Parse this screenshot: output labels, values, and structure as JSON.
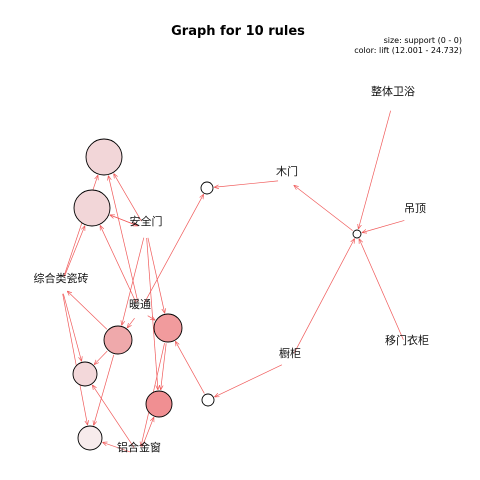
{
  "graph": {
    "title": "Graph for 10 rules",
    "legend": {
      "size": "size: support (0 - 0)",
      "color": "color: lift (12.001 - 24.732)"
    },
    "items": {
      "zhengti": "整体卫浴",
      "mumen": "木门",
      "diaoding": "吊顶",
      "anquanmen": "安全门",
      "zonghe": "综合类瓷砖",
      "nuantong": "暖通",
      "yimen": "移门衣柜",
      "chugui": "橱柜",
      "lvhejin": "铝合金窗"
    },
    "rules": [
      {
        "id": "r1",
        "lift_color": "#f2d6d8"
      },
      {
        "id": "r2",
        "lift_color": "#f2d6d8"
      },
      {
        "id": "r3",
        "lift_color": "#ffffff"
      },
      {
        "id": "r4",
        "lift_color": "#ffffff"
      },
      {
        "id": "r5",
        "lift_color": "#efa9ab"
      },
      {
        "id": "r6",
        "lift_color": "#f19b9d"
      },
      {
        "id": "r7",
        "lift_color": "#f3d8da"
      },
      {
        "id": "r8",
        "lift_color": "#f08f92"
      },
      {
        "id": "r9",
        "lift_color": "#ffffff"
      },
      {
        "id": "r10",
        "lift_color": "#f7ebec"
      }
    ],
    "edges": [
      [
        "zhengti",
        "r4"
      ],
      [
        "diaoding",
        "r4"
      ],
      [
        "yimen",
        "r4"
      ],
      [
        "r4",
        "mumen"
      ],
      [
        "mumen",
        "r3"
      ],
      [
        "chugui",
        "r4"
      ],
      [
        "anquanmen",
        "r1"
      ],
      [
        "anquanmen",
        "r2"
      ],
      [
        "anquanmen",
        "r5"
      ],
      [
        "anquanmen",
        "r6"
      ],
      [
        "anquanmen",
        "r8"
      ],
      [
        "zonghe",
        "r1"
      ],
      [
        "zonghe",
        "r2"
      ],
      [
        "zonghe",
        "r7"
      ],
      [
        "zonghe",
        "r10"
      ],
      [
        "nuantong",
        "r1"
      ],
      [
        "nuantong",
        "r2"
      ],
      [
        "nuantong",
        "r3"
      ],
      [
        "nuantong",
        "r5"
      ],
      [
        "nuantong",
        "r6"
      ],
      [
        "r5",
        "zonghe"
      ],
      [
        "r6",
        "lvhejin"
      ],
      [
        "r5",
        "r7"
      ],
      [
        "r6",
        "r8"
      ],
      [
        "r5",
        "r10"
      ],
      [
        "lvhejin",
        "r7"
      ],
      [
        "lvhejin",
        "r8"
      ],
      [
        "lvhejin",
        "r10"
      ],
      [
        "r9",
        "r6"
      ],
      [
        "chugui",
        "r9"
      ],
      [
        "r2",
        "anquanmen"
      ]
    ]
  }
}
